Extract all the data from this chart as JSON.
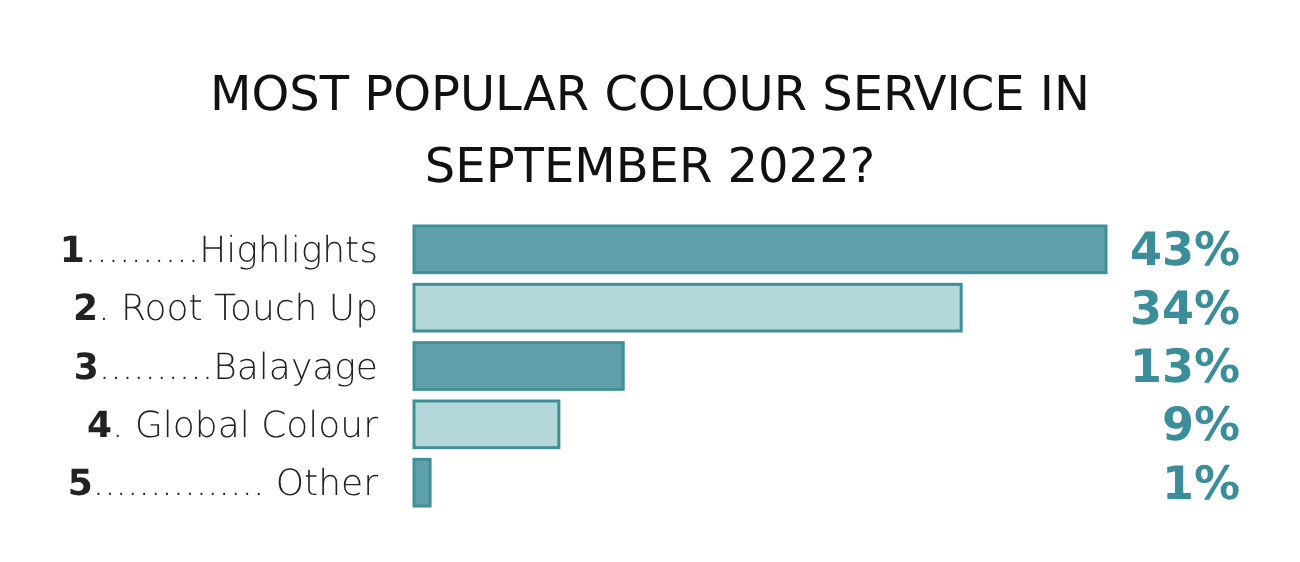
{
  "chart_data": {
    "type": "bar",
    "orientation": "horizontal",
    "title": "MOST POPULAR COLOUR SERVICE IN SEPTEMBER 2022?",
    "categories": [
      "1..........Highlights",
      "2. Root Touch Up",
      "3..........Balayage",
      "4.  Global Colour",
      "5............... Other"
    ],
    "values": [
      43,
      34,
      13,
      9,
      1
    ],
    "colors": [
      "#5fa0aa",
      "#b4d8da",
      "#5fa0aa",
      "#b4d8da",
      "#5fa0aa"
    ],
    "value_labels": [
      "43%",
      "34%",
      "13%",
      "9%",
      "1%"
    ]
  }
}
